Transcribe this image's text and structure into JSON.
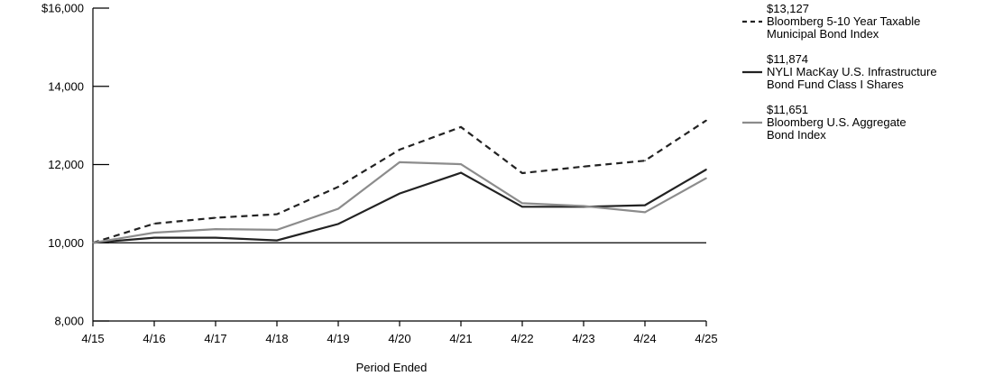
{
  "chart_data": {
    "type": "line",
    "title": "",
    "xlabel": "Period Ended",
    "ylabel": "",
    "categories": [
      "4/15",
      "4/16",
      "4/17",
      "4/18",
      "4/19",
      "4/20",
      "4/21",
      "4/22",
      "4/23",
      "4/24",
      "4/25"
    ],
    "ylim": [
      8000,
      16000
    ],
    "yticks": [
      "$16,000",
      "14,000",
      "12,000",
      "10,000",
      "8,000"
    ],
    "ytick_values": [
      16000,
      14000,
      12000,
      10000,
      8000
    ],
    "baseline": 10000,
    "grid": false,
    "legend_position": "right",
    "series": [
      {
        "name_lines": [
          "Bloomberg 5-10 Year Taxable",
          "Municipal Bond Index"
        ],
        "end_label": "$13,127",
        "style": "dashed",
        "color": "#222222",
        "values": [
          10000,
          10490,
          10640,
          10730,
          11430,
          12380,
          12960,
          11780,
          11950,
          12100,
          13127
        ]
      },
      {
        "name_lines": [
          "NYLI MacKay U.S. Infrastructure",
          "Bond Fund Class I Shares"
        ],
        "end_label": "$11,874",
        "style": "solid",
        "color": "#222222",
        "values": [
          10000,
          10130,
          10130,
          10060,
          10480,
          11260,
          11790,
          10920,
          10920,
          10960,
          11874
        ]
      },
      {
        "name_lines": [
          "Bloomberg U.S. Aggregate",
          "Bond Index"
        ],
        "end_label": "$11,651",
        "style": "solid",
        "color": "#8c8c8c",
        "values": [
          10000,
          10260,
          10350,
          10330,
          10870,
          12060,
          12010,
          11010,
          10940,
          10780,
          11651
        ]
      }
    ]
  }
}
